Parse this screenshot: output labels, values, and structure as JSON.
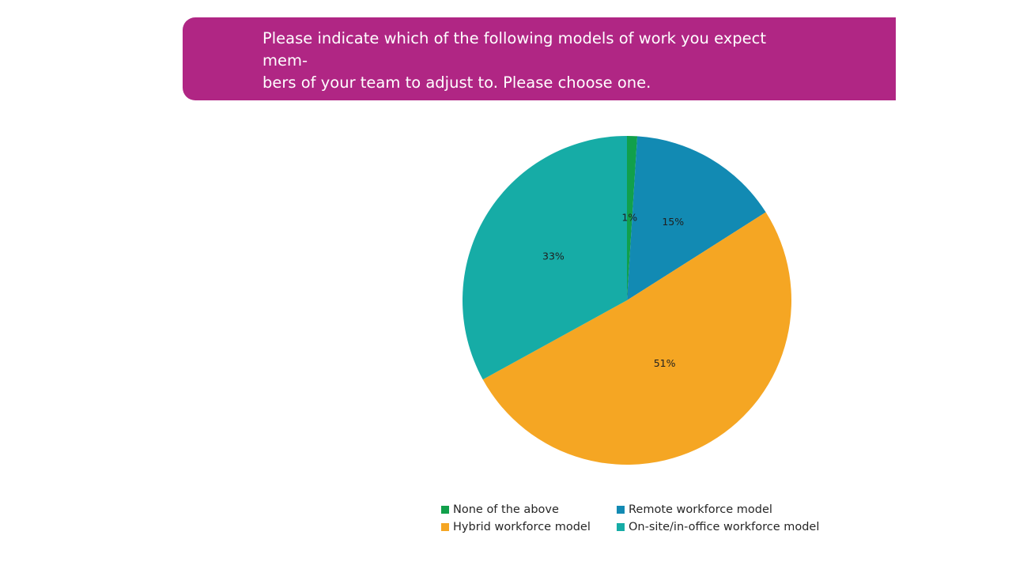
{
  "colors": {
    "banner": "#B02684",
    "banner_text": "#ffffff"
  },
  "question": {
    "text": "Please indicate which of the following models of work you expect mem-\nbers of your team to adjust to. Please choose one."
  },
  "chart_data": {
    "type": "pie",
    "title": "",
    "start_angle_deg": 0,
    "direction": "clockwise",
    "slices": [
      {
        "name": "None of the above",
        "value": 1,
        "label": "1%",
        "color": "#11A04B"
      },
      {
        "name": "Remote workforce model",
        "value": 15,
        "label": "15%",
        "color": "#128AB3"
      },
      {
        "name": "Hybrid workforce model",
        "value": 51,
        "label": "51%",
        "color": "#F5A623"
      },
      {
        "name": "On-site/in-office workforce model",
        "value": 33,
        "label": "33%",
        "color": "#16ACA6"
      }
    ],
    "legend": {
      "position": "bottom",
      "entries": [
        "None of the above",
        "Remote workforce model",
        "Hybrid workforce model",
        "On-site/in-office workforce model"
      ]
    }
  }
}
